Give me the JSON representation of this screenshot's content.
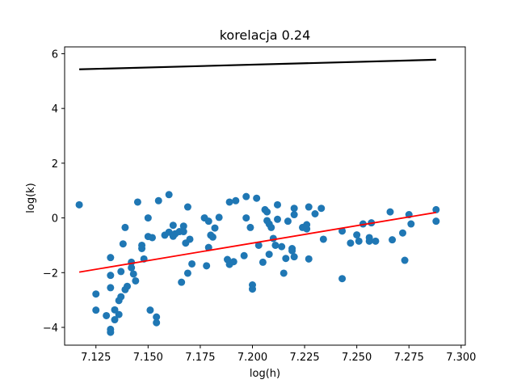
{
  "chart_data": {
    "type": "scatter",
    "title": "korelacja 0.24",
    "xlabel": "log(h)",
    "ylabel": "log(k)",
    "xlim": [
      7.11,
      7.302
    ],
    "ylim": [
      -4.65,
      6.25
    ],
    "xticks": [
      7.125,
      7.15,
      7.175,
      7.2,
      7.225,
      7.25,
      7.275,
      7.3
    ],
    "xtick_labels": [
      "7.125",
      "7.150",
      "7.175",
      "7.200",
      "7.225",
      "7.250",
      "7.275",
      "7.300"
    ],
    "yticks": [
      -4,
      -2,
      0,
      2,
      4,
      6
    ],
    "ytick_labels": [
      "−4",
      "−2",
      "0",
      "2",
      "4",
      "6"
    ],
    "grid": false,
    "colors": {
      "points": "#1f77b4",
      "fit_line": "#ff0000",
      "upper_line": "#000000"
    },
    "series": [
      {
        "type": "scatter",
        "points": [
          [
            7.117,
            0.48
          ],
          [
            7.125,
            -2.78
          ],
          [
            7.125,
            -3.37
          ],
          [
            7.13,
            -3.57
          ],
          [
            7.132,
            -4.07
          ],
          [
            7.132,
            -4.18
          ],
          [
            7.132,
            -2.55
          ],
          [
            7.132,
            -2.1
          ],
          [
            7.132,
            -1.45
          ],
          [
            7.134,
            -3.36
          ],
          [
            7.134,
            -3.72
          ],
          [
            7.136,
            -3.53
          ],
          [
            7.136,
            -3.02
          ],
          [
            7.137,
            -2.88
          ],
          [
            7.137,
            -1.96
          ],
          [
            7.138,
            -0.95
          ],
          [
            7.139,
            -2.62
          ],
          [
            7.139,
            -0.35
          ],
          [
            7.14,
            -2.5
          ],
          [
            7.142,
            -1.62
          ],
          [
            7.142,
            -1.82
          ],
          [
            7.143,
            -2.05
          ],
          [
            7.144,
            -2.3
          ],
          [
            7.145,
            0.58
          ],
          [
            7.147,
            -1.0
          ],
          [
            7.147,
            -1.12
          ],
          [
            7.148,
            -1.5
          ],
          [
            7.15,
            -0.68
          ],
          [
            7.15,
            0.0
          ],
          [
            7.151,
            -3.37
          ],
          [
            7.152,
            -0.72
          ],
          [
            7.154,
            -3.62
          ],
          [
            7.154,
            -3.83
          ],
          [
            7.155,
            0.63
          ],
          [
            7.158,
            -0.63
          ],
          [
            7.16,
            0.85
          ],
          [
            7.16,
            -0.52
          ],
          [
            7.162,
            -0.67
          ],
          [
            7.162,
            -0.27
          ],
          [
            7.163,
            -0.58
          ],
          [
            7.165,
            -0.5
          ],
          [
            7.166,
            -2.35
          ],
          [
            7.167,
            -0.5
          ],
          [
            7.167,
            -0.3
          ],
          [
            7.168,
            -0.92
          ],
          [
            7.169,
            -2.02
          ],
          [
            7.169,
            0.4
          ],
          [
            7.17,
            -0.78
          ],
          [
            7.171,
            -1.68
          ],
          [
            7.177,
            0.0
          ],
          [
            7.178,
            -1.75
          ],
          [
            7.179,
            -0.12
          ],
          [
            7.179,
            -1.08
          ],
          [
            7.18,
            -0.63
          ],
          [
            7.181,
            -0.7
          ],
          [
            7.182,
            -0.37
          ],
          [
            7.184,
            0.02
          ],
          [
            7.188,
            -1.52
          ],
          [
            7.189,
            0.58
          ],
          [
            7.189,
            -1.7
          ],
          [
            7.191,
            -1.6
          ],
          [
            7.192,
            0.63
          ],
          [
            7.196,
            -1.38
          ],
          [
            7.197,
            0.0
          ],
          [
            7.197,
            0.78
          ],
          [
            7.199,
            -0.35
          ],
          [
            7.2,
            -2.45
          ],
          [
            7.2,
            -2.6
          ],
          [
            7.202,
            0.72
          ],
          [
            7.203,
            -1.0
          ],
          [
            7.205,
            -1.62
          ],
          [
            7.206,
            0.3
          ],
          [
            7.207,
            0.22
          ],
          [
            7.207,
            -0.1
          ],
          [
            7.208,
            -1.33
          ],
          [
            7.208,
            -0.22
          ],
          [
            7.209,
            -0.35
          ],
          [
            7.21,
            -0.75
          ],
          [
            7.211,
            -1.0
          ],
          [
            7.212,
            0.48
          ],
          [
            7.212,
            -0.05
          ],
          [
            7.214,
            -1.05
          ],
          [
            7.215,
            -2.02
          ],
          [
            7.216,
            -1.48
          ],
          [
            7.217,
            -0.12
          ],
          [
            7.219,
            -1.12
          ],
          [
            7.219,
            -1.2
          ],
          [
            7.22,
            0.35
          ],
          [
            7.22,
            0.12
          ],
          [
            7.22,
            -1.42
          ],
          [
            7.224,
            -0.35
          ],
          [
            7.226,
            -0.4
          ],
          [
            7.226,
            -0.25
          ],
          [
            7.227,
            -1.5
          ],
          [
            7.227,
            0.4
          ],
          [
            7.23,
            0.15
          ],
          [
            7.233,
            0.35
          ],
          [
            7.234,
            -0.78
          ],
          [
            7.243,
            -0.48
          ],
          [
            7.243,
            -2.22
          ],
          [
            7.247,
            -0.92
          ],
          [
            7.25,
            -0.62
          ],
          [
            7.251,
            -0.85
          ],
          [
            7.253,
            -0.22
          ],
          [
            7.256,
            -0.72
          ],
          [
            7.256,
            -0.85
          ],
          [
            7.257,
            -0.18
          ],
          [
            7.259,
            -0.85
          ],
          [
            7.266,
            0.22
          ],
          [
            7.267,
            -0.8
          ],
          [
            7.272,
            -0.55
          ],
          [
            7.273,
            -1.55
          ],
          [
            7.275,
            0.12
          ],
          [
            7.276,
            -0.22
          ],
          [
            7.288,
            0.3
          ],
          [
            7.288,
            -0.12
          ]
        ]
      },
      {
        "type": "line",
        "x": [
          7.117,
          7.288
        ],
        "y": [
          -1.98,
          0.2
        ]
      },
      {
        "type": "line",
        "x": [
          7.117,
          7.288
        ],
        "y": [
          5.43,
          5.78
        ]
      }
    ]
  }
}
